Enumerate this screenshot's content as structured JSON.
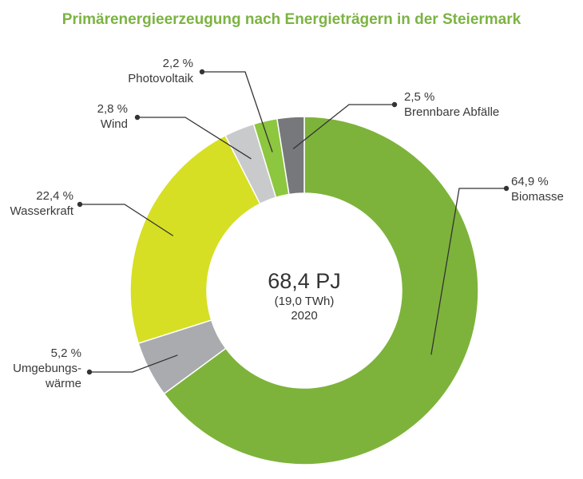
{
  "chart_data": {
    "type": "pie",
    "title": "Primärenergieerzeugung nach Energieträgern in der Steiermark",
    "center": {
      "value": "68,4 PJ",
      "sub": "(19,0 TWh)",
      "year": "2020"
    },
    "slices": [
      {
        "name": "Biomasse",
        "label_lines": [
          "Biomasse"
        ],
        "value": 64.9,
        "value_label": "64,9 %",
        "color": "#7db33b"
      },
      {
        "name": "Umgebungswärme",
        "label_lines": [
          "Umgebungs-",
          "wärme"
        ],
        "value": 5.2,
        "value_label": "5,2 %",
        "color": "#a9abae"
      },
      {
        "name": "Wasserkraft",
        "label_lines": [
          "Wasserkraft"
        ],
        "value": 22.4,
        "value_label": "22,4 %",
        "color": "#d6df23"
      },
      {
        "name": "Wind",
        "label_lines": [
          "Wind"
        ],
        "value": 2.8,
        "value_label": "2,8 %",
        "color": "#c9cacc"
      },
      {
        "name": "Photovoltaik",
        "label_lines": [
          "Photovoltaik"
        ],
        "value": 2.2,
        "value_label": "2,2 %",
        "color": "#8dc63f"
      },
      {
        "name": "Brennbare Abfälle",
        "label_lines": [
          "Brennbare Abfälle"
        ],
        "value": 2.5,
        "value_label": "2,5 %",
        "color": "#77787b"
      }
    ]
  }
}
